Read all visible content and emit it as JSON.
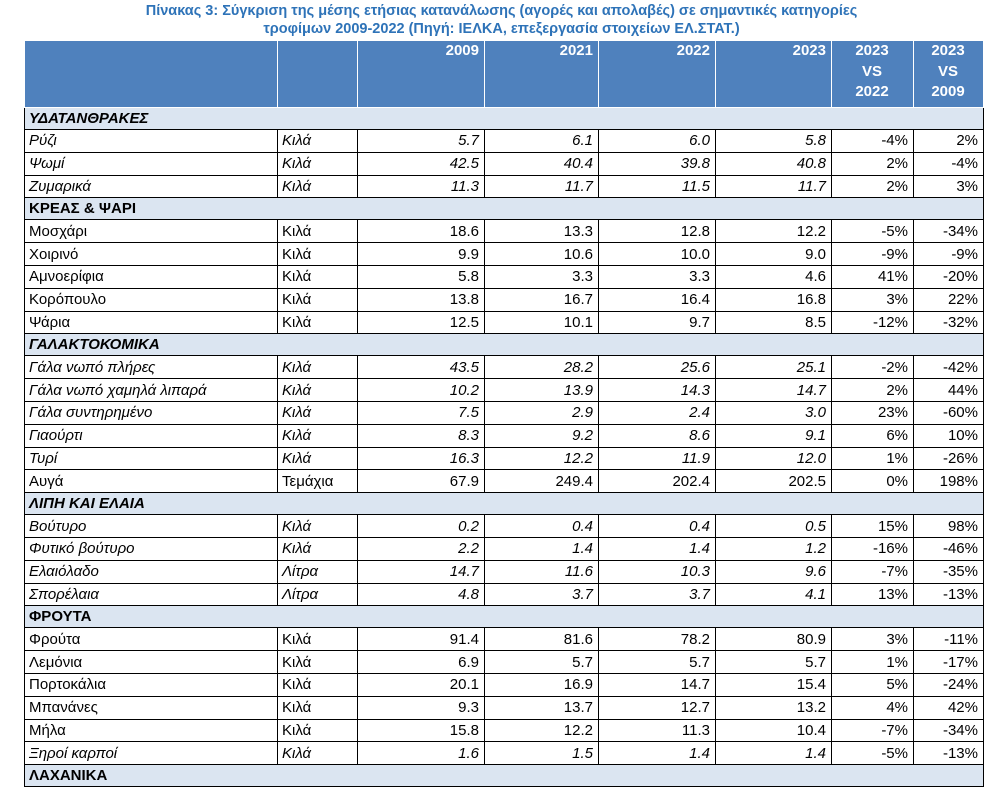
{
  "title": {
    "line1": "Πίνακας 3: Σύγκριση της μέσης ετήσιας κατανάλωσης (αγορές και απολαβές)  σε σημαντικές κατηγορίες",
    "line2": "τροφίμων 2009-2022 (Πηγή: ΙΕΛΚΑ, επεξεργασία στοιχείων ΕΛ.ΣΤΑΤ.)"
  },
  "header": {
    "col_2009": "2009",
    "col_2021": "2021",
    "col_2022": "2022",
    "col_2023": "2023",
    "cmp1": {
      "a": "2023",
      "b": "VS",
      "c": "2022"
    },
    "cmp2": {
      "a": "2023",
      "b": "VS",
      "c": "2009"
    }
  },
  "sections": [
    {
      "name": "ΥΔΑΤΑΝΘΡΑΚΕΣ",
      "italic": true,
      "rows": [
        {
          "name": "Ρύζι",
          "unit": "Κιλά",
          "v2009": "5.7",
          "v2021": "6.1",
          "v2022": "6.0",
          "v2023": "5.8",
          "c1": "-4%",
          "c2": "2%",
          "italic": true
        },
        {
          "name": "Ψωμί",
          "unit": "Κιλά",
          "v2009": "42.5",
          "v2021": "40.4",
          "v2022": "39.8",
          "v2023": "40.8",
          "c1": "2%",
          "c2": "-4%",
          "italic": true
        },
        {
          "name": "Ζυμαρικά",
          "unit": "Κιλά",
          "v2009": "11.3",
          "v2021": "11.7",
          "v2022": "11.5",
          "v2023": "11.7",
          "c1": "2%",
          "c2": "3%",
          "italic": true
        }
      ]
    },
    {
      "name": "ΚΡΕΑΣ & ΨΑΡΙ",
      "italic": false,
      "rows": [
        {
          "name": "Μοσχάρι",
          "unit": "Κιλά",
          "v2009": "18.6",
          "v2021": "13.3",
          "v2022": "12.8",
          "v2023": "12.2",
          "c1": "-5%",
          "c2": "-34%",
          "italic": false
        },
        {
          "name": "Χοιρινό",
          "unit": "Κιλά",
          "v2009": "9.9",
          "v2021": "10.6",
          "v2022": "10.0",
          "v2023": "9.0",
          "c1": "-9%",
          "c2": "-9%",
          "italic": false
        },
        {
          "name": "Αμνοερίφια",
          "unit": "Κιλά",
          "v2009": "5.8",
          "v2021": "3.3",
          "v2022": "3.3",
          "v2023": "4.6",
          "c1": "41%",
          "c2": "-20%",
          "italic": false
        },
        {
          "name": "Κορόπουλο",
          "unit": "Κιλά",
          "v2009": "13.8",
          "v2021": "16.7",
          "v2022": "16.4",
          "v2023": "16.8",
          "c1": "3%",
          "c2": "22%",
          "italic": false
        },
        {
          "name": "Ψάρια",
          "unit": "Κιλά",
          "v2009": "12.5",
          "v2021": "10.1",
          "v2022": "9.7",
          "v2023": "8.5",
          "c1": "-12%",
          "c2": "-32%",
          "italic": false
        }
      ]
    },
    {
      "name": "ΓΑΛΑΚΤΟΚΟΜΙΚΑ",
      "italic": true,
      "rows": [
        {
          "name": "Γάλα νωπό  πλήρες",
          "unit": "Κιλά",
          "v2009": "43.5",
          "v2021": "28.2",
          "v2022": "25.6",
          "v2023": "25.1",
          "c1": "-2%",
          "c2": "-42%",
          "italic": true
        },
        {
          "name": "Γάλα νωπό  χαμηλά λιπαρά",
          "unit": "Κιλά",
          "v2009": "10.2",
          "v2021": "13.9",
          "v2022": "14.3",
          "v2023": "14.7",
          "c1": "2%",
          "c2": "44%",
          "italic": true
        },
        {
          "name": "Γάλα συντηρημένο",
          "unit": "Κιλά",
          "v2009": "7.5",
          "v2021": "2.9",
          "v2022": "2.4",
          "v2023": "3.0",
          "c1": "23%",
          "c2": "-60%",
          "italic": true
        },
        {
          "name": "Γιαούρτι",
          "unit": "Κιλά",
          "v2009": "8.3",
          "v2021": "9.2",
          "v2022": "8.6",
          "v2023": "9.1",
          "c1": "6%",
          "c2": "10%",
          "italic": true
        },
        {
          "name": "Τυρί",
          "unit": "Κιλά",
          "v2009": "16.3",
          "v2021": "12.2",
          "v2022": "11.9",
          "v2023": "12.0",
          "c1": "1%",
          "c2": "-26%",
          "italic": true
        },
        {
          "name": "Αυγά",
          "unit": "Τεμάχια",
          "v2009": "67.9",
          "v2021": "249.4",
          "v2022": "202.4",
          "v2023": "202.5",
          "c1": "0%",
          "c2": "198%",
          "italic": false
        }
      ]
    },
    {
      "name": "ΛΙΠΗ ΚΑΙ ΕΛΑΙΑ",
      "italic": true,
      "rows": [
        {
          "name": "Βούτυρο",
          "unit": "Κιλά",
          "v2009": "0.2",
          "v2021": "0.4",
          "v2022": "0.4",
          "v2023": "0.5",
          "c1": "15%",
          "c2": "98%",
          "italic": true
        },
        {
          "name": "Φυτικό βούτυρο",
          "unit": "Κιλά",
          "v2009": "2.2",
          "v2021": "1.4",
          "v2022": "1.4",
          "v2023": "1.2",
          "c1": "-16%",
          "c2": "-46%",
          "italic": true
        },
        {
          "name": "Ελαιόλαδο",
          "unit": "Λίτρα",
          "v2009": "14.7",
          "v2021": "11.6",
          "v2022": "10.3",
          "v2023": "9.6",
          "c1": "-7%",
          "c2": "-35%",
          "italic": true
        },
        {
          "name": "Σπορέλαια",
          "unit": "Λίτρα",
          "v2009": "4.8",
          "v2021": "3.7",
          "v2022": "3.7",
          "v2023": "4.1",
          "c1": "13%",
          "c2": "-13%",
          "italic": true
        }
      ]
    },
    {
      "name": "ΦΡΟΥΤΑ",
      "italic": false,
      "rows": [
        {
          "name": "Φρούτα",
          "unit": "Κιλά",
          "v2009": "91.4",
          "v2021": "81.6",
          "v2022": "78.2",
          "v2023": "80.9",
          "c1": "3%",
          "c2": "-11%",
          "italic": false
        },
        {
          "name": "Λεμόνια",
          "unit": "Κιλά",
          "v2009": "6.9",
          "v2021": "5.7",
          "v2022": "5.7",
          "v2023": "5.7",
          "c1": "1%",
          "c2": "-17%",
          "italic": false
        },
        {
          "name": "Πορτοκάλια",
          "unit": "Κιλά",
          "v2009": "20.1",
          "v2021": "16.9",
          "v2022": "14.7",
          "v2023": "15.4",
          "c1": "5%",
          "c2": "-24%",
          "italic": false
        },
        {
          "name": "Μπανάνες",
          "unit": "Κιλά",
          "v2009": "9.3",
          "v2021": "13.7",
          "v2022": "12.7",
          "v2023": "13.2",
          "c1": "4%",
          "c2": "42%",
          "italic": false
        },
        {
          "name": "Μήλα",
          "unit": "Κιλά",
          "v2009": "15.8",
          "v2021": "12.2",
          "v2022": "11.3",
          "v2023": "10.4",
          "c1": "-7%",
          "c2": "-34%",
          "italic": false
        },
        {
          "name": "Ξηροί καρποί",
          "unit": "Κιλά",
          "v2009": "1.6",
          "v2021": "1.5",
          "v2022": "1.4",
          "v2023": "1.4",
          "c1": "-5%",
          "c2": "-13%",
          "italic": true
        }
      ]
    },
    {
      "name": "ΛΑΧΑΝΙΚΑ",
      "italic": false,
      "rows": []
    }
  ]
}
